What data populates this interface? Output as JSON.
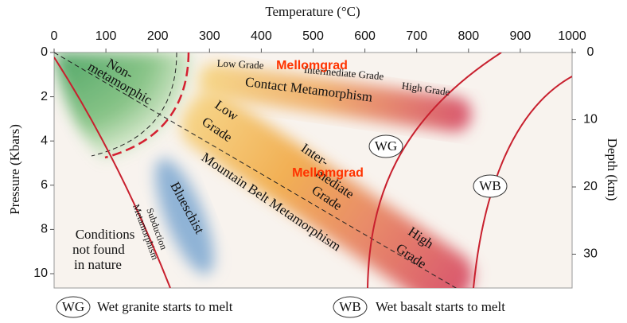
{
  "axes": {
    "x_title": "Temperature (°C)",
    "x_ticks": [
      "0",
      "100",
      "200",
      "300",
      "400",
      "500",
      "600",
      "700",
      "800",
      "900",
      "1000"
    ],
    "y_title": "Pressure (Kbars)",
    "y_ticks": [
      "0",
      "2",
      "4",
      "6",
      "8",
      "10"
    ],
    "y2_title": "Depth (km)",
    "y2_ticks": [
      "0",
      "10",
      "20",
      "30"
    ]
  },
  "regions": {
    "non_metamorphic": [
      "Non-",
      "metamorphic"
    ],
    "contact": {
      "low": "Low Grade",
      "intermediate": "Intermediate Grade",
      "high": "High Grade",
      "overlay": "Mellomgrad",
      "name": "Contact Metamorphism"
    },
    "mountain": {
      "low": [
        "Low",
        "Grade"
      ],
      "intermediate": [
        "Inter-",
        "mediate",
        "Grade"
      ],
      "high": [
        "High",
        "Grade"
      ],
      "overlay": "Mellomgrad",
      "name": "Mountain Belt Metamorphism"
    },
    "blueschist": "Blueschist",
    "subduction": [
      "Subduction",
      "Metamorphism"
    ],
    "not_found": [
      "Conditions",
      "not found",
      "in nature"
    ]
  },
  "curves": {
    "wg": "WG",
    "wb": "WB"
  },
  "legend": [
    {
      "symbol": "WG",
      "text": "Wet granite starts to melt"
    },
    {
      "symbol": "WB",
      "text": "Wet basalt starts to melt"
    }
  ]
}
